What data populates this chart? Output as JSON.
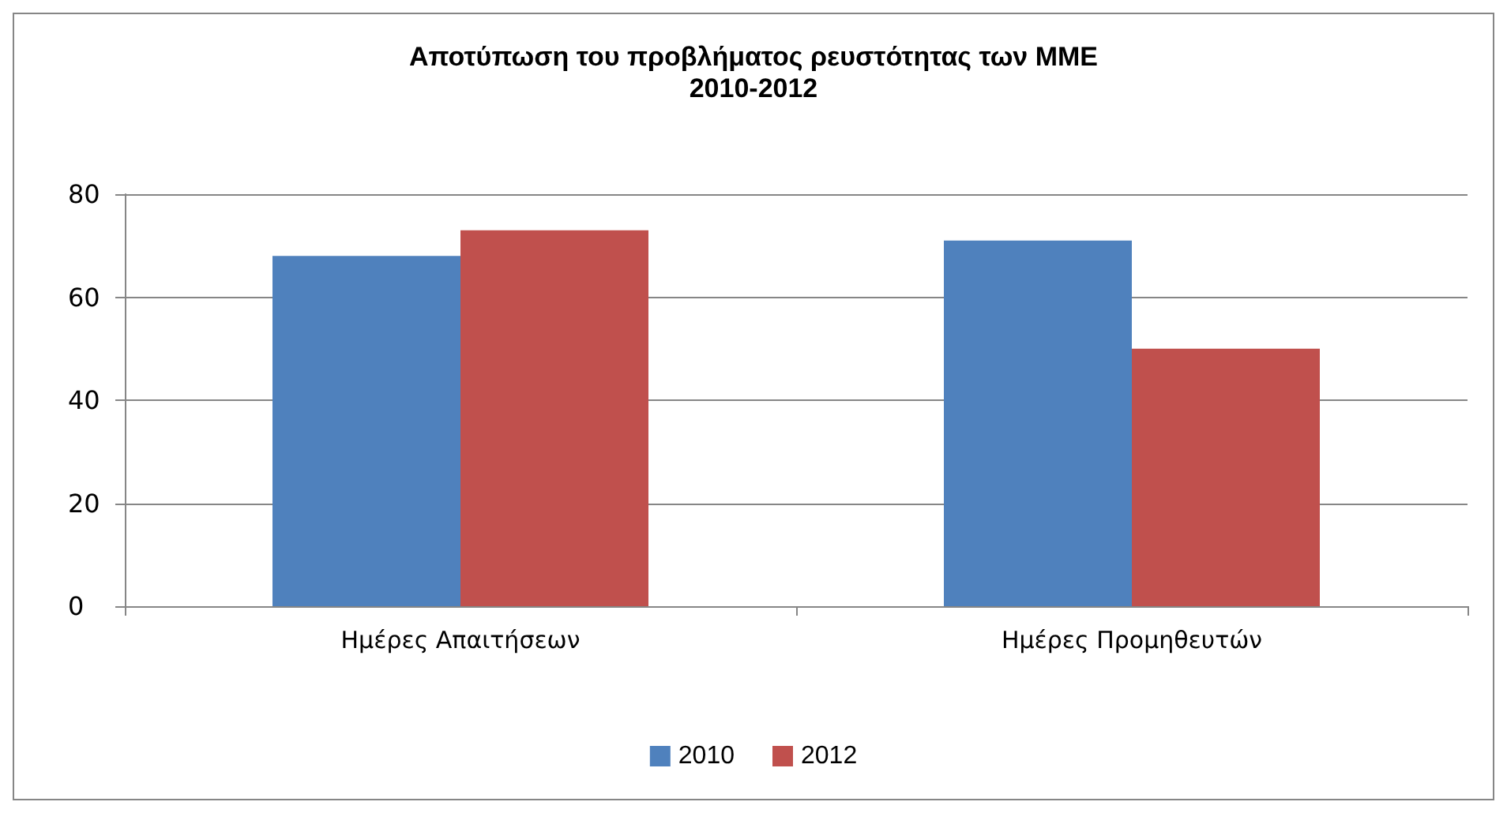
{
  "chart_data": {
    "type": "bar",
    "title": "Αποτύπωση του προβλήματος ρευστότητας των ΜΜΕ\n2010-2012",
    "categories": [
      "Ημέρες Απαιτήσεων",
      "Ημέρες Προμηθευτών"
    ],
    "series": [
      {
        "name": "2010",
        "color": "#4f81bd",
        "values": [
          68,
          71
        ]
      },
      {
        "name": "2012",
        "color": "#c0504d",
        "values": [
          73,
          50
        ]
      }
    ],
    "ylim": [
      0,
      80
    ],
    "yticks": [
      0,
      20,
      40,
      60,
      80
    ],
    "grid": "y",
    "legend": "bottom"
  }
}
